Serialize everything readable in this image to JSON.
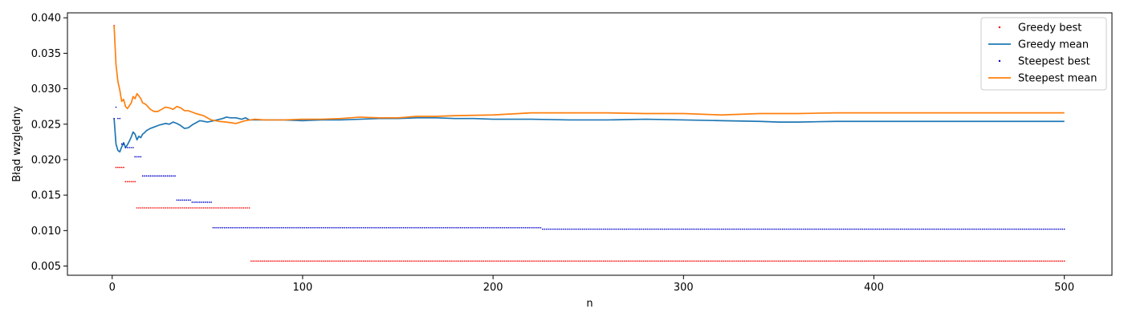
{
  "chart_data": {
    "type": "line",
    "title": "",
    "xlabel": "n",
    "ylabel": "Błąd względny",
    "xlim": [
      -23.5,
      525
    ],
    "ylim": [
      0.0037,
      0.0407
    ],
    "xticks": [
      0,
      100,
      200,
      300,
      400,
      500
    ],
    "xtick_labels": [
      "0",
      "100",
      "200",
      "300",
      "400",
      "500"
    ],
    "yticks": [
      0.005,
      0.01,
      0.015,
      0.02,
      0.025,
      0.03,
      0.035,
      0.04
    ],
    "ytick_labels": [
      "0.005",
      "0.010",
      "0.015",
      "0.020",
      "0.025",
      "0.030",
      "0.035",
      "0.040"
    ],
    "grid": false,
    "legend_position": "top-right",
    "series": [
      {
        "name": "Greedy best",
        "kind": "points",
        "color": "#ff0000",
        "steps": [
          {
            "from": 1,
            "to": 1,
            "y": 0.0389
          },
          {
            "from": 2,
            "to": 6,
            "y": 0.0189
          },
          {
            "from": 7,
            "to": 12,
            "y": 0.0169
          },
          {
            "from": 13,
            "to": 72,
            "y": 0.0132
          },
          {
            "from": 73,
            "to": 500,
            "y": 0.0057
          }
        ]
      },
      {
        "name": "Greedy mean",
        "kind": "line",
        "color": "#1f77b4",
        "x": [
          1,
          2,
          3,
          4,
          5,
          6,
          7,
          8,
          9,
          10,
          11,
          12,
          13,
          14,
          15,
          16,
          17,
          18,
          20,
          22,
          25,
          28,
          30,
          32,
          34,
          36,
          38,
          40,
          42,
          44,
          46,
          48,
          50,
          52,
          55,
          58,
          60,
          62,
          65,
          68,
          70,
          72,
          75,
          80,
          90,
          100,
          110,
          120,
          130,
          140,
          150,
          160,
          170,
          180,
          190,
          200,
          220,
          240,
          260,
          280,
          300,
          320,
          340,
          350,
          360,
          380,
          400,
          420,
          440,
          460,
          480,
          500
        ],
        "y": [
          0.0258,
          0.0222,
          0.0213,
          0.0211,
          0.0218,
          0.0224,
          0.0217,
          0.0221,
          0.0226,
          0.0232,
          0.0239,
          0.0236,
          0.0228,
          0.0233,
          0.0231,
          0.0236,
          0.0238,
          0.0241,
          0.0244,
          0.0246,
          0.0249,
          0.0251,
          0.025,
          0.0253,
          0.0251,
          0.0248,
          0.0244,
          0.0245,
          0.0249,
          0.0252,
          0.0255,
          0.0254,
          0.0253,
          0.0254,
          0.0256,
          0.0258,
          0.026,
          0.0259,
          0.0259,
          0.0257,
          0.0259,
          0.0256,
          0.0256,
          0.0256,
          0.0256,
          0.0255,
          0.0256,
          0.0256,
          0.0257,
          0.0258,
          0.0258,
          0.0259,
          0.0259,
          0.0258,
          0.0258,
          0.0257,
          0.0257,
          0.0256,
          0.0256,
          0.0257,
          0.0256,
          0.0255,
          0.0254,
          0.0253,
          0.0253,
          0.0254,
          0.0254,
          0.0254,
          0.0254,
          0.0254,
          0.0254,
          0.0254
        ]
      },
      {
        "name": "Steepest best",
        "kind": "points",
        "color": "#0000cc",
        "steps": [
          {
            "from": 1,
            "to": 1,
            "y": 0.0258
          },
          {
            "from": 2,
            "to": 2,
            "y": 0.0274
          },
          {
            "from": 3,
            "to": 4,
            "y": 0.0258
          },
          {
            "from": 5,
            "to": 6,
            "y": 0.0222
          },
          {
            "from": 7,
            "to": 11,
            "y": 0.0217
          },
          {
            "from": 12,
            "to": 15,
            "y": 0.0204
          },
          {
            "from": 16,
            "to": 33,
            "y": 0.0177
          },
          {
            "from": 34,
            "to": 41,
            "y": 0.0143
          },
          {
            "from": 42,
            "to": 52,
            "y": 0.014
          },
          {
            "from": 53,
            "to": 225,
            "y": 0.0104
          },
          {
            "from": 226,
            "to": 500,
            "y": 0.0102
          }
        ]
      },
      {
        "name": "Steepest mean",
        "kind": "line",
        "color": "#ff7f0e",
        "x": [
          1,
          2,
          3,
          4,
          5,
          6,
          7,
          8,
          9,
          10,
          11,
          12,
          13,
          14,
          15,
          16,
          17,
          18,
          20,
          22,
          24,
          26,
          28,
          30,
          32,
          34,
          36,
          38,
          40,
          44,
          48,
          52,
          56,
          60,
          65,
          70,
          75,
          80,
          90,
          100,
          110,
          120,
          130,
          140,
          150,
          160,
          170,
          180,
          200,
          220,
          240,
          260,
          280,
          300,
          310,
          320,
          330,
          340,
          350,
          360,
          380,
          400,
          420,
          440,
          460,
          480,
          500
        ],
        "y": [
          0.0389,
          0.0334,
          0.031,
          0.0298,
          0.0282,
          0.0285,
          0.0275,
          0.0272,
          0.0276,
          0.028,
          0.0289,
          0.0286,
          0.0293,
          0.029,
          0.0286,
          0.028,
          0.0279,
          0.0277,
          0.0271,
          0.0268,
          0.0268,
          0.0271,
          0.0274,
          0.0273,
          0.0271,
          0.0275,
          0.0273,
          0.0269,
          0.0269,
          0.0265,
          0.0262,
          0.0256,
          0.0254,
          0.0253,
          0.0251,
          0.0255,
          0.0257,
          0.0256,
          0.0256,
          0.0257,
          0.0257,
          0.0258,
          0.026,
          0.0259,
          0.0259,
          0.0261,
          0.0261,
          0.0262,
          0.0263,
          0.0266,
          0.0266,
          0.0266,
          0.0265,
          0.0265,
          0.0264,
          0.0263,
          0.0264,
          0.0265,
          0.0265,
          0.0265,
          0.0266,
          0.0266,
          0.0266,
          0.0266,
          0.0266,
          0.0266,
          0.0266
        ]
      }
    ]
  }
}
